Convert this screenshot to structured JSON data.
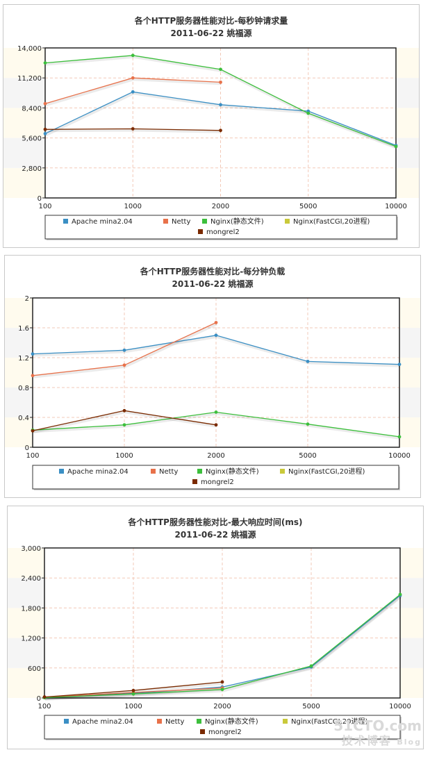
{
  "watermark": {
    "site": "51CTO.com",
    "sub": "技术博客",
    "tag": "Blog"
  },
  "legend_colors": [
    "#3a8fc4",
    "#e8714a",
    "#3cbf3c",
    "#c9c93a",
    "#7a2a00"
  ],
  "chart_data": [
    {
      "type": "line",
      "title": "各个HTTP服务器性能对比-每秒钟请求量",
      "subtitle": "2011-06-22 姚福源",
      "categories": [
        "100",
        "1000",
        "2000",
        "5000",
        "10000"
      ],
      "ylim": [
        0,
        14000
      ],
      "yticks": [
        "0",
        "2,800",
        "5,600",
        "8,400",
        "11,200",
        "14,000"
      ],
      "ytick_values": [
        0,
        2800,
        5600,
        8400,
        11200,
        14000
      ],
      "grid": true,
      "legend_position": "bottom",
      "series": [
        {
          "name": "Apache mina2.04",
          "color": "#3a8fc4",
          "values": [
            6000,
            9900,
            8700,
            8100,
            4900
          ]
        },
        {
          "name": "Netty",
          "color": "#e8714a",
          "values": [
            8800,
            11200,
            10800,
            null,
            null
          ]
        },
        {
          "name": "Nginx(静态文件)",
          "color": "#3cbf3c",
          "values": [
            12600,
            13300,
            12000,
            7900,
            4800
          ]
        },
        {
          "name": "Nginx(FastCGI,20进程)",
          "color": "#c9c93a",
          "values": [
            null,
            null,
            null,
            null,
            null
          ]
        },
        {
          "name": "mongrel2",
          "color": "#7a2a00",
          "values": [
            6400,
            6450,
            6300,
            null,
            null
          ]
        }
      ]
    },
    {
      "type": "line",
      "title": "各个HTTP服务器性能对比-每分钟负载",
      "subtitle": "2011-06-22 姚福源",
      "categories": [
        "100",
        "1000",
        "2000",
        "5000",
        "10000"
      ],
      "ylim": [
        0,
        2
      ],
      "yticks": [
        "0",
        "0.4",
        "0.8",
        "1.2",
        "1.6",
        "2"
      ],
      "ytick_values": [
        0,
        0.4,
        0.8,
        1.2,
        1.6,
        2
      ],
      "grid": true,
      "legend_position": "bottom",
      "series": [
        {
          "name": "Apache mina2.04",
          "color": "#3a8fc4",
          "values": [
            1.25,
            1.3,
            1.5,
            1.15,
            1.11
          ]
        },
        {
          "name": "Netty",
          "color": "#e8714a",
          "values": [
            0.96,
            1.1,
            1.67,
            null,
            null
          ]
        },
        {
          "name": "Nginx(静态文件)",
          "color": "#3cbf3c",
          "values": [
            0.23,
            0.3,
            0.47,
            0.31,
            0.14
          ]
        },
        {
          "name": "Nginx(FastCGI,20进程)",
          "color": "#c9c93a",
          "values": [
            null,
            null,
            null,
            null,
            null
          ]
        },
        {
          "name": "mongrel2",
          "color": "#7a2a00",
          "values": [
            0.22,
            0.49,
            0.3,
            null,
            null
          ]
        }
      ]
    },
    {
      "type": "line",
      "title": "各个HTTP服务器性能对比-最大响应时间(ms)",
      "subtitle": "2011-06-22 姚福源",
      "categories": [
        "100",
        "1000",
        "2000",
        "5000",
        "10000"
      ],
      "ylim": [
        0,
        3000
      ],
      "yticks": [
        "0",
        "600",
        "1,200",
        "1,800",
        "2,400",
        "3,000"
      ],
      "ytick_values": [
        0,
        600,
        1200,
        1800,
        2400,
        3000
      ],
      "grid": true,
      "legend_position": "bottom",
      "series": [
        {
          "name": "Apache mina2.04",
          "color": "#3a8fc4",
          "values": [
            10,
            90,
            220,
            620,
            2050
          ]
        },
        {
          "name": "Netty",
          "color": "#e8714a",
          "values": [
            15,
            110,
            200,
            null,
            null
          ]
        },
        {
          "name": "Nginx(静态文件)",
          "color": "#3cbf3c",
          "values": [
            5,
            80,
            170,
            640,
            2070
          ]
        },
        {
          "name": "Nginx(FastCGI,20进程)",
          "color": "#c9c93a",
          "values": [
            null,
            null,
            null,
            null,
            null
          ]
        },
        {
          "name": "mongrel2",
          "color": "#7a2a00",
          "values": [
            20,
            150,
            320,
            null,
            null
          ]
        }
      ]
    }
  ]
}
